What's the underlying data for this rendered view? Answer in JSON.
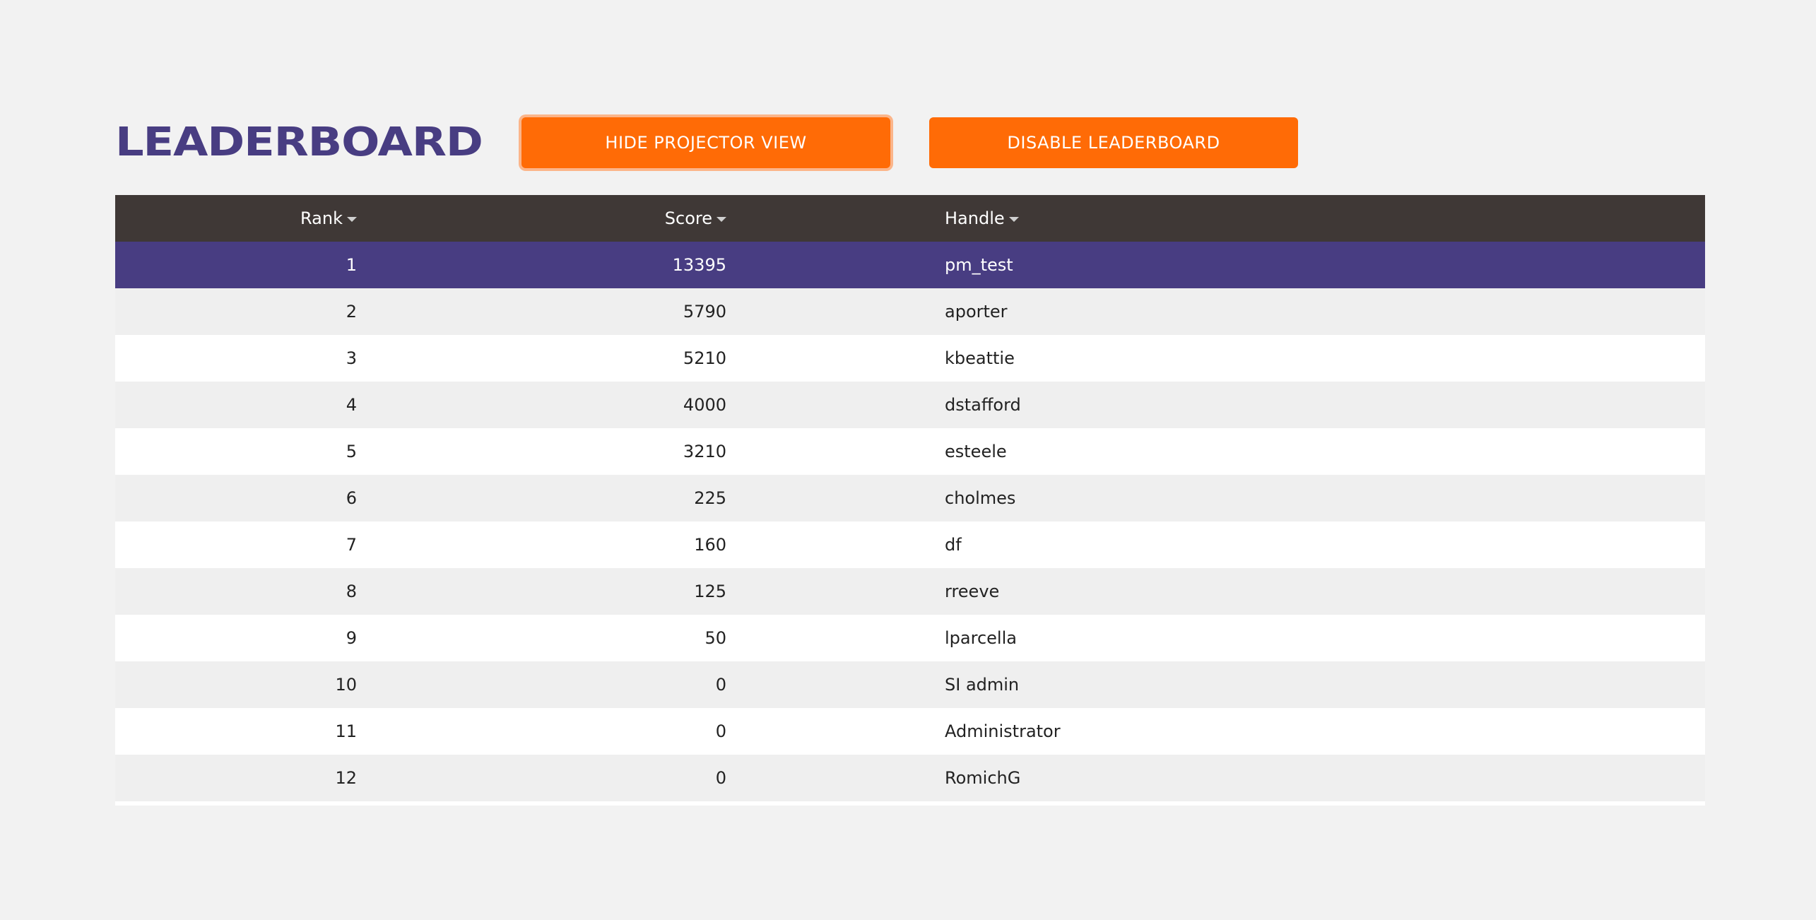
{
  "header": {
    "title": "LEADERBOARD",
    "hide_projector_label": "HIDE PROJECTOR VIEW",
    "disable_leaderboard_label": "DISABLE LEADERBOARD"
  },
  "table": {
    "columns": {
      "rank": "Rank",
      "score": "Score",
      "handle": "Handle"
    },
    "rows": [
      {
        "rank": "1",
        "score": "13395",
        "handle": "pm_test"
      },
      {
        "rank": "2",
        "score": "5790",
        "handle": "aporter"
      },
      {
        "rank": "3",
        "score": "5210",
        "handle": "kbeattie"
      },
      {
        "rank": "4",
        "score": "4000",
        "handle": "dstafford"
      },
      {
        "rank": "5",
        "score": "3210",
        "handle": "esteele"
      },
      {
        "rank": "6",
        "score": "225",
        "handle": "cholmes"
      },
      {
        "rank": "7",
        "score": "160",
        "handle": "df"
      },
      {
        "rank": "8",
        "score": "125",
        "handle": "rreeve"
      },
      {
        "rank": "9",
        "score": "50",
        "handle": "lparcella"
      },
      {
        "rank": "10",
        "score": "0",
        "handle": "SI admin"
      },
      {
        "rank": "11",
        "score": "0",
        "handle": "Administrator"
      },
      {
        "rank": "12",
        "score": "0",
        "handle": "RomichG"
      }
    ]
  },
  "colors": {
    "accent": "#ff6b06",
    "brand": "#483d82",
    "header_bg": "#3f3836",
    "page_bg": "#f2f2f2"
  }
}
